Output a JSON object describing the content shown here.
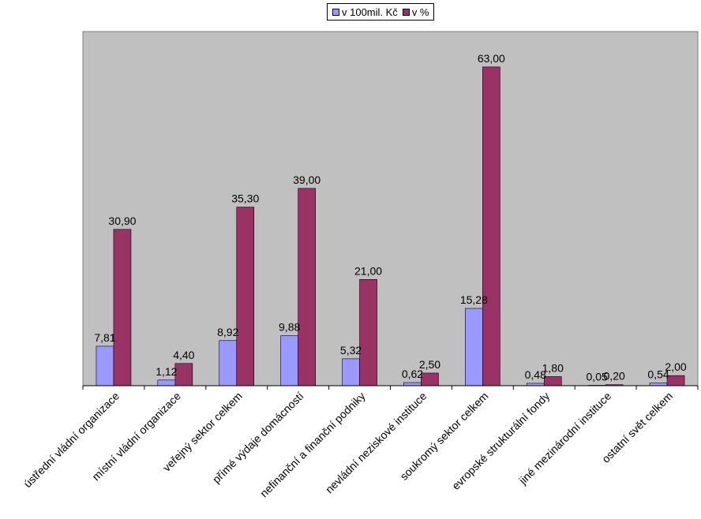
{
  "chart_data": {
    "type": "bar",
    "categories": [
      "ústřední vládní organizace",
      "místní vládní organizace",
      "veřejný sektor celkem",
      "přímé výdaje domácností",
      "nefinanční a finanční podniky",
      "nevládní neziskové instituce",
      "soukromý sektor celkem",
      "evropské strukturální fondy",
      "jiné mezinárodní instituce",
      "ostatní svět celkem"
    ],
    "series": [
      {
        "name": "v 100mil. Kč",
        "values": [
          7.81,
          1.12,
          8.92,
          9.88,
          5.32,
          0.62,
          15.28,
          0.48,
          0.05,
          0.54
        ],
        "labels": [
          "7,81",
          "1,12",
          "8,92",
          "9,88",
          "5,32",
          "0,62",
          "15,28",
          "0,48",
          "0,05",
          "0,54"
        ],
        "color": "#9999ff"
      },
      {
        "name": "v %",
        "values": [
          30.9,
          4.4,
          35.3,
          39.0,
          21.0,
          2.5,
          63.0,
          1.8,
          0.2,
          2.0
        ],
        "labels": [
          "30,90",
          "4,40",
          "35,30",
          "39,00",
          "21,00",
          "2,50",
          "63,00",
          "1,80",
          "0,20",
          "2,00"
        ],
        "color": "#993366"
      }
    ],
    "ylim": [
      0,
      70
    ],
    "title": "",
    "xlabel": "",
    "ylabel": "",
    "grid": false,
    "legend_position": "top-center",
    "plot_background": "#c0c0c0"
  }
}
